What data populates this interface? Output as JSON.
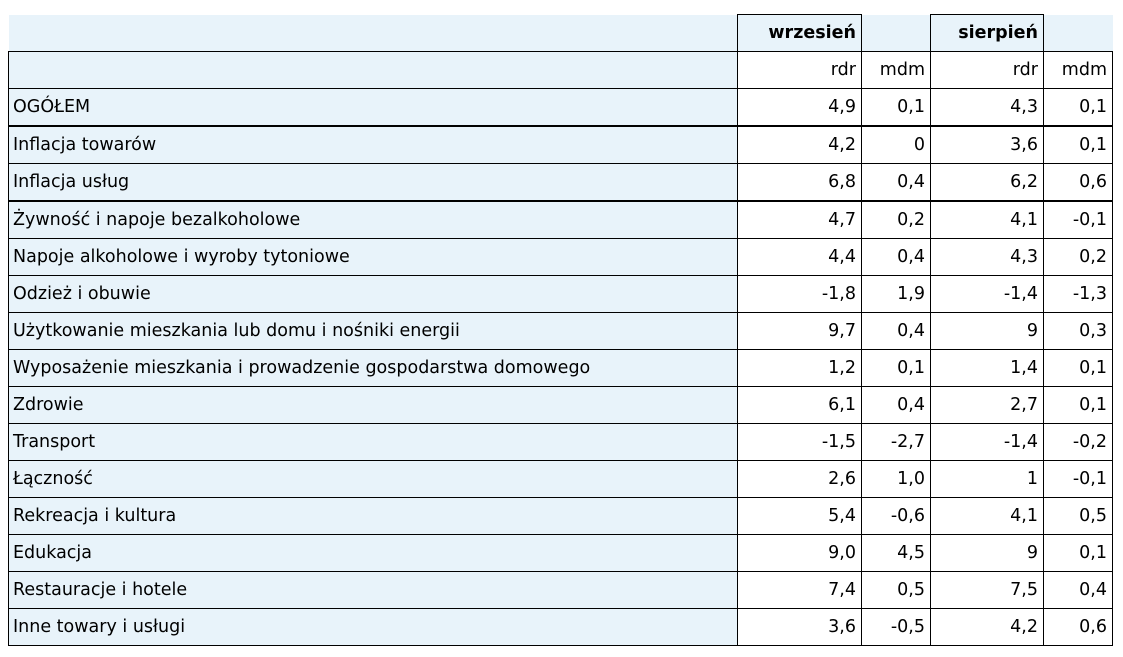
{
  "header": {
    "group1": "wrzesień",
    "group2": "sierpień",
    "sub_rdr": "rdr",
    "sub_mdm": "mdm"
  },
  "rows": [
    {
      "label": "OGÓŁEM",
      "w_rdr": "4,9",
      "w_mdm": "0,1",
      "s_rdr": "4,3",
      "s_mdm": "0,1"
    },
    {
      "label": "Inflacja towarów",
      "w_rdr": "4,2",
      "w_mdm": "0",
      "s_rdr": "3,6",
      "s_mdm": "0,1"
    },
    {
      "label": "Inflacja usług",
      "w_rdr": "6,8",
      "w_mdm": "0,4",
      "s_rdr": "6,2",
      "s_mdm": "0,6"
    },
    {
      "label": "Żywność i napoje bezalkoholowe",
      "w_rdr": "4,7",
      "w_mdm": "0,2",
      "s_rdr": "4,1",
      "s_mdm": "-0,1"
    },
    {
      "label": "Napoje alkoholowe i wyroby tytoniowe",
      "w_rdr": "4,4",
      "w_mdm": "0,4",
      "s_rdr": "4,3",
      "s_mdm": "0,2"
    },
    {
      "label": "Odzież i obuwie",
      "w_rdr": "-1,8",
      "w_mdm": "1,9",
      "s_rdr": "-1,4",
      "s_mdm": "-1,3"
    },
    {
      "label": "Użytkowanie mieszkania lub domu i nośniki energii",
      "w_rdr": "9,7",
      "w_mdm": "0,4",
      "s_rdr": "9",
      "s_mdm": "0,3"
    },
    {
      "label": "Wyposażenie mieszkania i prowadzenie gospodarstwa domowego",
      "w_rdr": "1,2",
      "w_mdm": "0,1",
      "s_rdr": "1,4",
      "s_mdm": "0,1"
    },
    {
      "label": "Zdrowie",
      "w_rdr": "6,1",
      "w_mdm": "0,4",
      "s_rdr": "2,7",
      "s_mdm": "0,1"
    },
    {
      "label": "Transport",
      "w_rdr": "-1,5",
      "w_mdm": "-2,7",
      "s_rdr": "-1,4",
      "s_mdm": "-0,2"
    },
    {
      "label": "Łączność",
      "w_rdr": "2,6",
      "w_mdm": "1,0",
      "s_rdr": "1",
      "s_mdm": "-0,1"
    },
    {
      "label": "Rekreacja i kultura",
      "w_rdr": "5,4",
      "w_mdm": "-0,6",
      "s_rdr": "4,1",
      "s_mdm": "0,5"
    },
    {
      "label": "Edukacja",
      "w_rdr": "9,0",
      "w_mdm": "4,5",
      "s_rdr": "9",
      "s_mdm": "0,1"
    },
    {
      "label": "Restauracje i hotele",
      "w_rdr": "7,4",
      "w_mdm": "0,5",
      "s_rdr": "7,5",
      "s_mdm": "0,4"
    },
    {
      "label": "Inne towary i usługi",
      "w_rdr": "3,6",
      "w_mdm": "-0,5",
      "s_rdr": "4,2",
      "s_mdm": "0,6"
    }
  ],
  "colors": {
    "label_bg": "#e8f3fa",
    "value_bg": "#ffffff",
    "border": "#000000"
  }
}
